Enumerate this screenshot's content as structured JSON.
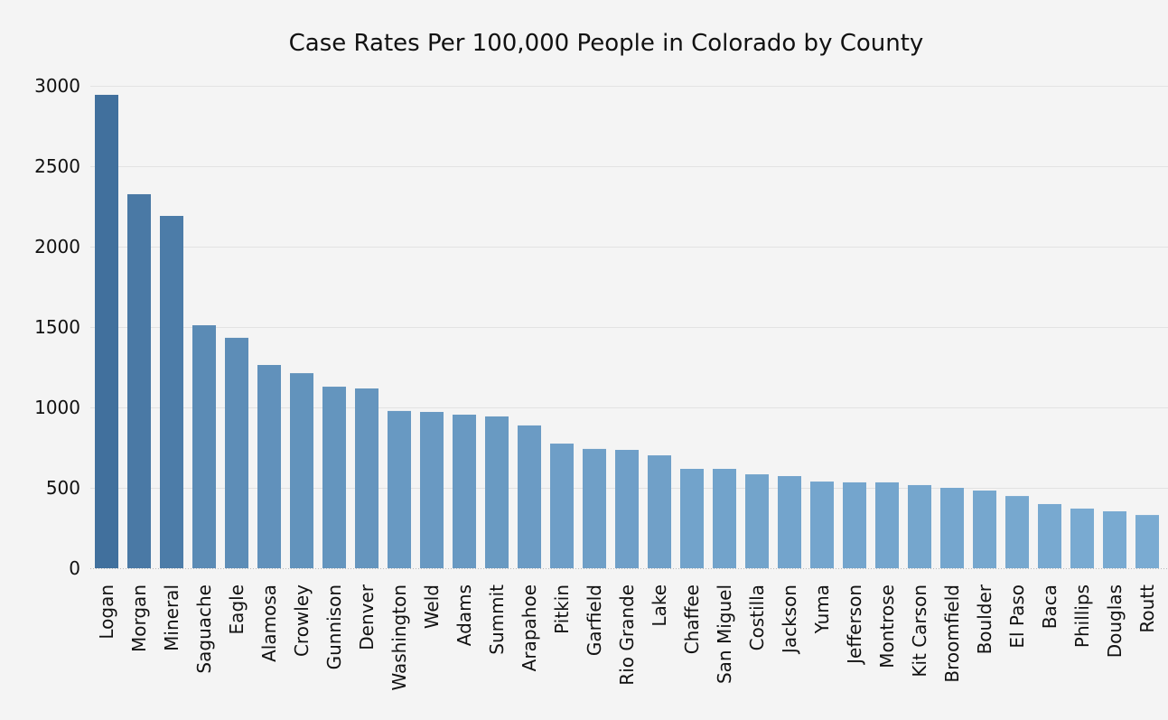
{
  "chart_data": {
    "type": "bar",
    "title": "Case Rates Per 100,000 People in Colorado by County",
    "xlabel": "",
    "ylabel": "",
    "ylim": [
      0,
      3000
    ],
    "yticks": [
      0,
      500,
      1000,
      1500,
      2000,
      2500,
      3000
    ],
    "grid": true,
    "legend": "none",
    "color_range": [
      "#41709d",
      "#7aabd2"
    ],
    "categories": [
      "Logan",
      "Morgan",
      "Mineral",
      "Saguache",
      "Eagle",
      "Alamosa",
      "Crowley",
      "Gunnison",
      "Denver",
      "Washington",
      "Weld",
      "Adams",
      "Summit",
      "Arapahoe",
      "Pitkin",
      "Garfield",
      "Rio Grande",
      "Lake",
      "Chaffee",
      "San Miguel",
      "Costilla",
      "Jackson",
      "Yuma",
      "Jefferson",
      "Montrose",
      "Kit Carson",
      "Broomfield",
      "Boulder",
      "El Paso",
      "Baca",
      "Phillips",
      "Douglas",
      "Routt"
    ],
    "values": [
      2944,
      2326,
      2191,
      1511,
      1433,
      1264,
      1213,
      1129,
      1118,
      978,
      972,
      955,
      944,
      888,
      775,
      742,
      736,
      702,
      618,
      618,
      584,
      573,
      539,
      534,
      534,
      517,
      500,
      483,
      449,
      399,
      371,
      354,
      331
    ]
  }
}
